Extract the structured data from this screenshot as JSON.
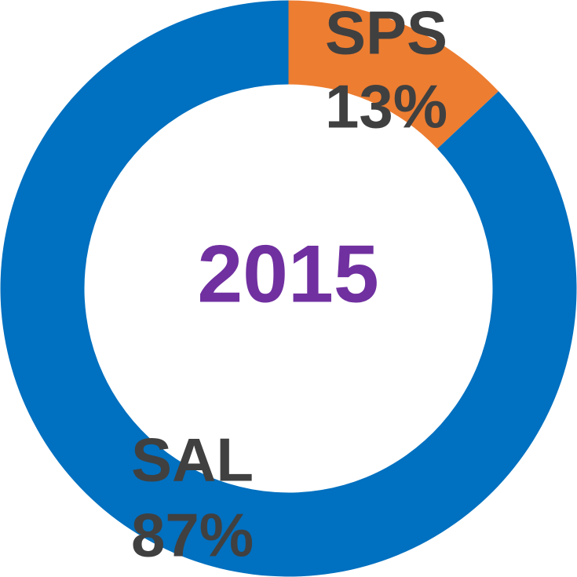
{
  "chart_data": {
    "type": "pie",
    "donut": true,
    "categories": [
      "SPS",
      "SAL"
    ],
    "values": [
      13,
      87
    ],
    "value_labels": [
      "13%",
      "87%"
    ],
    "colors": [
      "#ed7d31",
      "#0070c0"
    ],
    "center_label": "2015"
  }
}
